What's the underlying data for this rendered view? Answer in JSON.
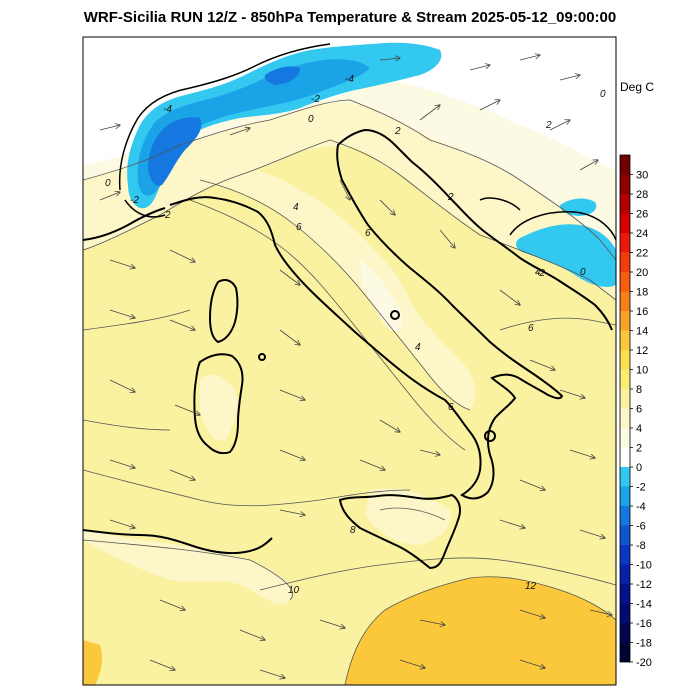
{
  "title": "WRF-Sicilia RUN 12/Z - 850hPa Temperature & Stream 2025-05-12_09:00:00",
  "units": "Deg C",
  "colorbar": {
    "labels": [
      "30",
      "28",
      "26",
      "24",
      "22",
      "20",
      "18",
      "16",
      "14",
      "12",
      "10",
      "8",
      "6",
      "4",
      "2",
      "0",
      "-2",
      "-4",
      "-6",
      "-8",
      "-10",
      "-12",
      "-14",
      "-16",
      "-18",
      "-20"
    ],
    "colors": [
      "#700000",
      "#8c0000",
      "#b20000",
      "#d40000",
      "#ea1a0a",
      "#f23c0c",
      "#f55e10",
      "#f7801a",
      "#f9a22a",
      "#fbc83c",
      "#f8e04e",
      "#f9ee70",
      "#faf2a0",
      "#fcf6c8",
      "#fdfae4",
      "#ffffff",
      "#33c8f0",
      "#1ba3e8",
      "#1478e0",
      "#0f55d0",
      "#0a36c0",
      "#0820a8",
      "#06128c",
      "#040a70",
      "#020650",
      "#010430"
    ]
  },
  "contour_labels": {
    "neg4a": "-4",
    "neg4b": "-4",
    "neg2a": "-2",
    "neg2b": "-2",
    "neg2c": "-2",
    "zero_a": "0",
    "zero_b": "0",
    "zero_c": "0",
    "zero_d": "0",
    "two_a": "2",
    "two_b": "2",
    "two_c": "2",
    "two_d": "2",
    "four_a": "4",
    "four_b": "4",
    "four_c": "4",
    "six_a": "6",
    "six_b": "6",
    "six_c": "6",
    "six_d": "6",
    "eight": "8",
    "ten": "10",
    "twelve": "12"
  },
  "colors": {
    "frame": "#000000",
    "bg_map": "#faf2a0",
    "warm": "#fbc83c",
    "light": "#fcf6c8",
    "cold_1": "#33c8f0",
    "cold_2": "#1ba3e8",
    "cold_3": "#1478e0"
  }
}
